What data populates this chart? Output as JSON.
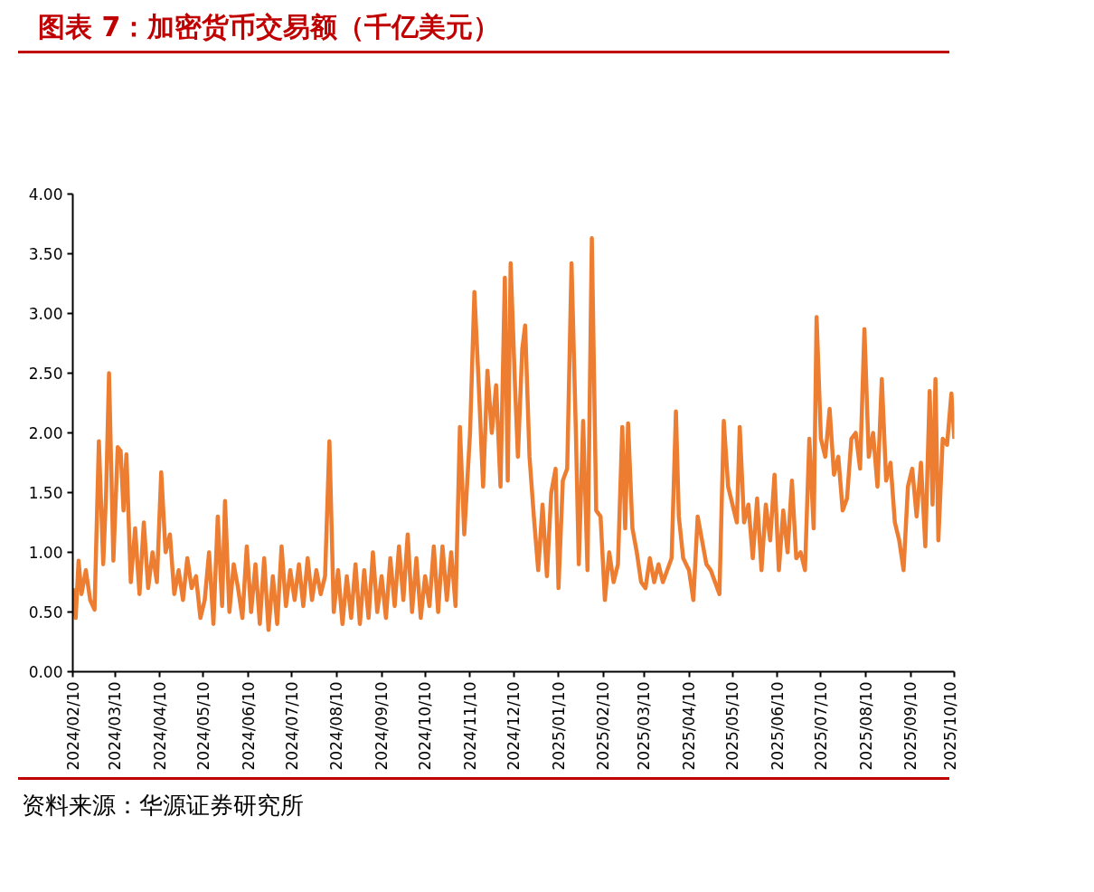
{
  "chart_data": {
    "type": "line",
    "title": "图表 7：加密货币交易额（千亿美元）",
    "annotations": [
      "资料来源：华源证券研究所"
    ],
    "x": [
      "2024-02-10",
      "2024-02-12",
      "2024-02-14",
      "2024-02-16",
      "2024-02-19",
      "2024-02-22",
      "2024-02-25",
      "2024-02-28",
      "2024-03-02",
      "2024-03-04",
      "2024-03-06",
      "2024-03-09",
      "2024-03-12",
      "2024-03-14",
      "2024-03-16",
      "2024-03-18",
      "2024-03-21",
      "2024-03-24",
      "2024-03-27",
      "2024-03-30",
      "2024-04-02",
      "2024-04-05",
      "2024-04-08",
      "2024-04-11",
      "2024-04-14",
      "2024-04-17",
      "2024-04-20",
      "2024-04-23",
      "2024-04-26",
      "2024-04-29",
      "2024-05-02",
      "2024-05-05",
      "2024-05-08",
      "2024-05-11",
      "2024-05-14",
      "2024-05-17",
      "2024-05-20",
      "2024-05-23",
      "2024-05-25",
      "2024-05-28",
      "2024-05-31",
      "2024-06-03",
      "2024-06-06",
      "2024-06-09",
      "2024-06-12",
      "2024-06-15",
      "2024-06-18",
      "2024-06-21",
      "2024-06-24",
      "2024-06-27",
      "2024-06-30",
      "2024-07-03",
      "2024-07-06",
      "2024-07-09",
      "2024-07-12",
      "2024-07-15",
      "2024-07-18",
      "2024-07-21",
      "2024-07-24",
      "2024-07-27",
      "2024-07-30",
      "2024-08-02",
      "2024-08-05",
      "2024-08-08",
      "2024-08-11",
      "2024-08-14",
      "2024-08-17",
      "2024-08-20",
      "2024-08-23",
      "2024-08-26",
      "2024-08-29",
      "2024-09-01",
      "2024-09-04",
      "2024-09-07",
      "2024-09-10",
      "2024-09-13",
      "2024-09-16",
      "2024-09-19",
      "2024-09-22",
      "2024-09-25",
      "2024-09-28",
      "2024-10-01",
      "2024-10-04",
      "2024-10-07",
      "2024-10-10",
      "2024-10-13",
      "2024-10-16",
      "2024-10-19",
      "2024-10-22",
      "2024-10-25",
      "2024-10-28",
      "2024-10-31",
      "2024-11-03",
      "2024-11-06",
      "2024-11-10",
      "2024-11-13",
      "2024-11-16",
      "2024-11-19",
      "2024-11-22",
      "2024-11-25",
      "2024-11-28",
      "2024-12-01",
      "2024-12-04",
      "2024-12-06",
      "2024-12-08",
      "2024-12-11",
      "2024-12-13",
      "2024-12-16",
      "2024-12-18",
      "2024-12-21",
      "2024-12-24",
      "2024-12-27",
      "2024-12-30",
      "2025-01-02",
      "2025-01-05",
      "2025-01-08",
      "2025-01-10",
      "2025-01-13",
      "2025-01-16",
      "2025-01-19",
      "2025-01-22",
      "2025-01-24",
      "2025-01-27",
      "2025-01-30",
      "2025-02-02",
      "2025-02-05",
      "2025-02-08",
      "2025-02-11",
      "2025-02-14",
      "2025-02-17",
      "2025-02-20",
      "2025-02-23",
      "2025-02-25",
      "2025-02-27",
      "2025-03-02",
      "2025-03-05",
      "2025-03-08",
      "2025-03-11",
      "2025-03-14",
      "2025-03-17",
      "2025-03-20",
      "2025-03-23",
      "2025-03-26",
      "2025-03-29",
      "2025-04-01",
      "2025-04-03",
      "2025-04-06",
      "2025-04-10",
      "2025-04-13",
      "2025-04-16",
      "2025-04-19",
      "2025-04-22",
      "2025-04-25",
      "2025-04-28",
      "2025-05-01",
      "2025-05-04",
      "2025-05-07",
      "2025-05-10",
      "2025-05-13",
      "2025-05-15",
      "2025-05-18",
      "2025-05-21",
      "2025-05-24",
      "2025-05-27",
      "2025-05-30",
      "2025-06-02",
      "2025-06-05",
      "2025-06-08",
      "2025-06-11",
      "2025-06-14",
      "2025-06-17",
      "2025-06-20",
      "2025-06-23",
      "2025-06-26",
      "2025-06-29",
      "2025-07-02",
      "2025-07-05",
      "2025-07-07",
      "2025-07-10",
      "2025-07-13",
      "2025-07-16",
      "2025-07-19",
      "2025-07-22",
      "2025-07-25",
      "2025-07-28",
      "2025-07-31",
      "2025-08-03",
      "2025-08-06",
      "2025-08-09",
      "2025-08-12",
      "2025-08-15",
      "2025-08-18",
      "2025-08-21",
      "2025-08-24",
      "2025-08-27",
      "2025-08-30",
      "2025-09-02",
      "2025-09-05",
      "2025-09-08",
      "2025-09-11",
      "2025-09-14",
      "2025-09-17",
      "2025-09-20",
      "2025-09-23",
      "2025-09-25",
      "2025-09-27",
      "2025-09-29",
      "2025-10-02",
      "2025-10-05",
      "2025-10-08",
      "2025-10-10"
    ],
    "series": [
      {
        "color": "#ed7d31",
        "values": [
          0.7,
          0.45,
          0.93,
          0.65,
          0.85,
          0.6,
          0.52,
          1.93,
          0.9,
          1.5,
          2.5,
          0.93,
          1.88,
          1.85,
          1.35,
          1.82,
          0.75,
          1.2,
          0.65,
          1.25,
          0.7,
          1.0,
          0.75,
          1.67,
          1.0,
          1.15,
          0.65,
          0.85,
          0.6,
          0.95,
          0.7,
          0.8,
          0.45,
          0.6,
          1.0,
          0.4,
          1.3,
          0.55,
          1.43,
          0.5,
          0.9,
          0.7,
          0.45,
          1.05,
          0.5,
          0.9,
          0.4,
          0.95,
          0.35,
          0.8,
          0.4,
          1.05,
          0.55,
          0.85,
          0.6,
          0.9,
          0.55,
          0.95,
          0.6,
          0.85,
          0.65,
          0.8,
          1.93,
          0.5,
          0.85,
          0.4,
          0.8,
          0.45,
          0.9,
          0.4,
          0.85,
          0.45,
          1.0,
          0.5,
          0.8,
          0.45,
          0.95,
          0.55,
          1.05,
          0.6,
          1.15,
          0.5,
          0.95,
          0.45,
          0.8,
          0.55,
          1.05,
          0.5,
          1.05,
          0.6,
          1.0,
          0.55,
          2.05,
          1.15,
          2.0,
          3.18,
          2.4,
          1.55,
          2.52,
          2.0,
          2.4,
          1.55,
          3.3,
          1.6,
          3.42,
          2.4,
          1.8,
          2.7,
          2.9,
          1.8,
          1.3,
          0.85,
          1.4,
          0.8,
          1.5,
          1.7,
          0.7,
          1.6,
          1.7,
          3.42,
          2.0,
          0.9,
          2.1,
          0.85,
          3.63,
          1.35,
          1.3,
          0.6,
          1.0,
          0.75,
          0.9,
          2.05,
          1.2,
          2.08,
          1.2,
          1.0,
          0.75,
          0.7,
          0.95,
          0.75,
          0.9,
          0.75,
          0.85,
          0.95,
          2.18,
          1.3,
          0.95,
          0.85,
          0.6,
          1.3,
          1.1,
          0.9,
          0.85,
          0.75,
          0.65,
          2.1,
          1.55,
          1.4,
          1.25,
          2.05,
          1.25,
          1.4,
          0.95,
          1.45,
          0.85,
          1.4,
          1.1,
          1.65,
          0.85,
          1.35,
          1.0,
          1.6,
          0.95,
          1.0,
          0.85,
          1.95,
          1.2,
          2.97,
          1.95,
          1.8,
          2.2,
          1.65,
          1.8,
          1.35,
          1.45,
          1.95,
          2.0,
          1.7,
          2.87,
          1.8,
          2.0,
          1.55,
          2.45,
          1.6,
          1.75,
          1.25,
          1.1,
          0.85,
          1.55,
          1.7,
          1.3,
          1.75,
          1.05,
          2.35,
          1.4,
          2.45,
          1.1,
          1.95,
          1.9,
          2.33,
          1.95
        ]
      }
    ],
    "ylim": [
      0,
      4
    ],
    "yticks": [
      {
        "value": 0,
        "label": "0.00"
      },
      {
        "value": 0.5,
        "label": "0.50"
      },
      {
        "value": 1,
        "label": "1.00"
      },
      {
        "value": 1.5,
        "label": "1.50"
      },
      {
        "value": 2,
        "label": "2.00"
      },
      {
        "value": 2.5,
        "label": "2.50"
      },
      {
        "value": 3,
        "label": "3.00"
      },
      {
        "value": 3.5,
        "label": "3.50"
      },
      {
        "value": 4,
        "label": "4.00"
      }
    ],
    "xlim": [
      "2024-02-10",
      "2025-10-10"
    ],
    "xticks": [
      {
        "value": "2024-02-10",
        "label": "2024/02/10"
      },
      {
        "value": "2024-03-10",
        "label": "2024/03/10"
      },
      {
        "value": "2024-04-10",
        "label": "2024/04/10"
      },
      {
        "value": "2024-05-10",
        "label": "2024/05/10"
      },
      {
        "value": "2024-06-10",
        "label": "2024/06/10"
      },
      {
        "value": "2024-07-10",
        "label": "2024/07/10"
      },
      {
        "value": "2024-08-10",
        "label": "2024/08/10"
      },
      {
        "value": "2024-09-10",
        "label": "2024/09/10"
      },
      {
        "value": "2024-10-10",
        "label": "2024/10/10"
      },
      {
        "value": "2024-11-10",
        "label": "2024/11/10"
      },
      {
        "value": "2024-12-10",
        "label": "2024/12/10"
      },
      {
        "value": "2025-01-10",
        "label": "2025/01/10"
      },
      {
        "value": "2025-02-10",
        "label": "2025/02/10"
      },
      {
        "value": "2025-03-10",
        "label": "2025/03/10"
      },
      {
        "value": "2025-04-10",
        "label": "2025/04/10"
      },
      {
        "value": "2025-05-10",
        "label": "2025/05/10"
      },
      {
        "value": "2025-06-10",
        "label": "2025/06/10"
      },
      {
        "value": "2025-07-10",
        "label": "2025/07/10"
      },
      {
        "value": "2025-08-10",
        "label": "2025/08/10"
      },
      {
        "value": "2025-09-10",
        "label": "2025/09/10"
      },
      {
        "value": "2025-10-10",
        "label": "2025/10/10"
      }
    ],
    "grid": false,
    "marker": "none",
    "line_style": "solid"
  }
}
